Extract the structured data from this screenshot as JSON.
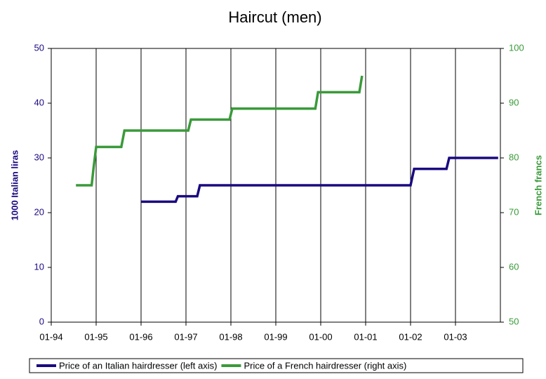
{
  "chart_data": {
    "type": "line",
    "title": "Haircut (men)",
    "y_label": "1000 Italian liras",
    "y2_label": "French francs",
    "xlim": [
      1994,
      2004
    ],
    "xticks": [
      {
        "value": 1994,
        "label": "01-94"
      },
      {
        "value": 1995,
        "label": "01-95"
      },
      {
        "value": 1996,
        "label": "01-96"
      },
      {
        "value": 1997,
        "label": "01-97"
      },
      {
        "value": 1998,
        "label": "01-98"
      },
      {
        "value": 1999,
        "label": "01-99"
      },
      {
        "value": 2000,
        "label": "01-00"
      },
      {
        "value": 2001,
        "label": "01-01"
      },
      {
        "value": 2002,
        "label": "01-02"
      },
      {
        "value": 2003,
        "label": "01-03"
      }
    ],
    "ylim": [
      0,
      50
    ],
    "yticks": [
      0,
      10,
      20,
      30,
      40,
      50
    ],
    "y2lim": [
      50,
      100
    ],
    "y2ticks": [
      50,
      60,
      70,
      80,
      90,
      100
    ],
    "grid": true,
    "legend": "bottom",
    "series": [
      {
        "name": "Price of an Italian hairdresser (left axis)",
        "color": "#1a0a80",
        "axis": "y",
        "x": [
          1996.0,
          1996.77,
          1996.82,
          1997.25,
          1997.31,
          2002.0,
          2002.08,
          2002.8,
          2002.86,
          2003.95
        ],
        "values": [
          22,
          22,
          23,
          23,
          25,
          25,
          28,
          28,
          30,
          30
        ]
      },
      {
        "name": "Price of a French hairdresser (right axis)",
        "color": "#3a9a3a",
        "axis": "y2",
        "x": [
          1994.55,
          1994.9,
          1994.94,
          1994.97,
          1995.0,
          1995.56,
          1995.63,
          1997.05,
          1997.11,
          1997.97,
          1998.03,
          1999.88,
          1999.94,
          2000.86,
          2000.92
        ],
        "values": [
          75,
          75,
          78,
          80,
          82,
          82,
          85,
          85,
          87,
          87,
          89,
          89,
          92,
          92,
          95
        ]
      }
    ]
  }
}
